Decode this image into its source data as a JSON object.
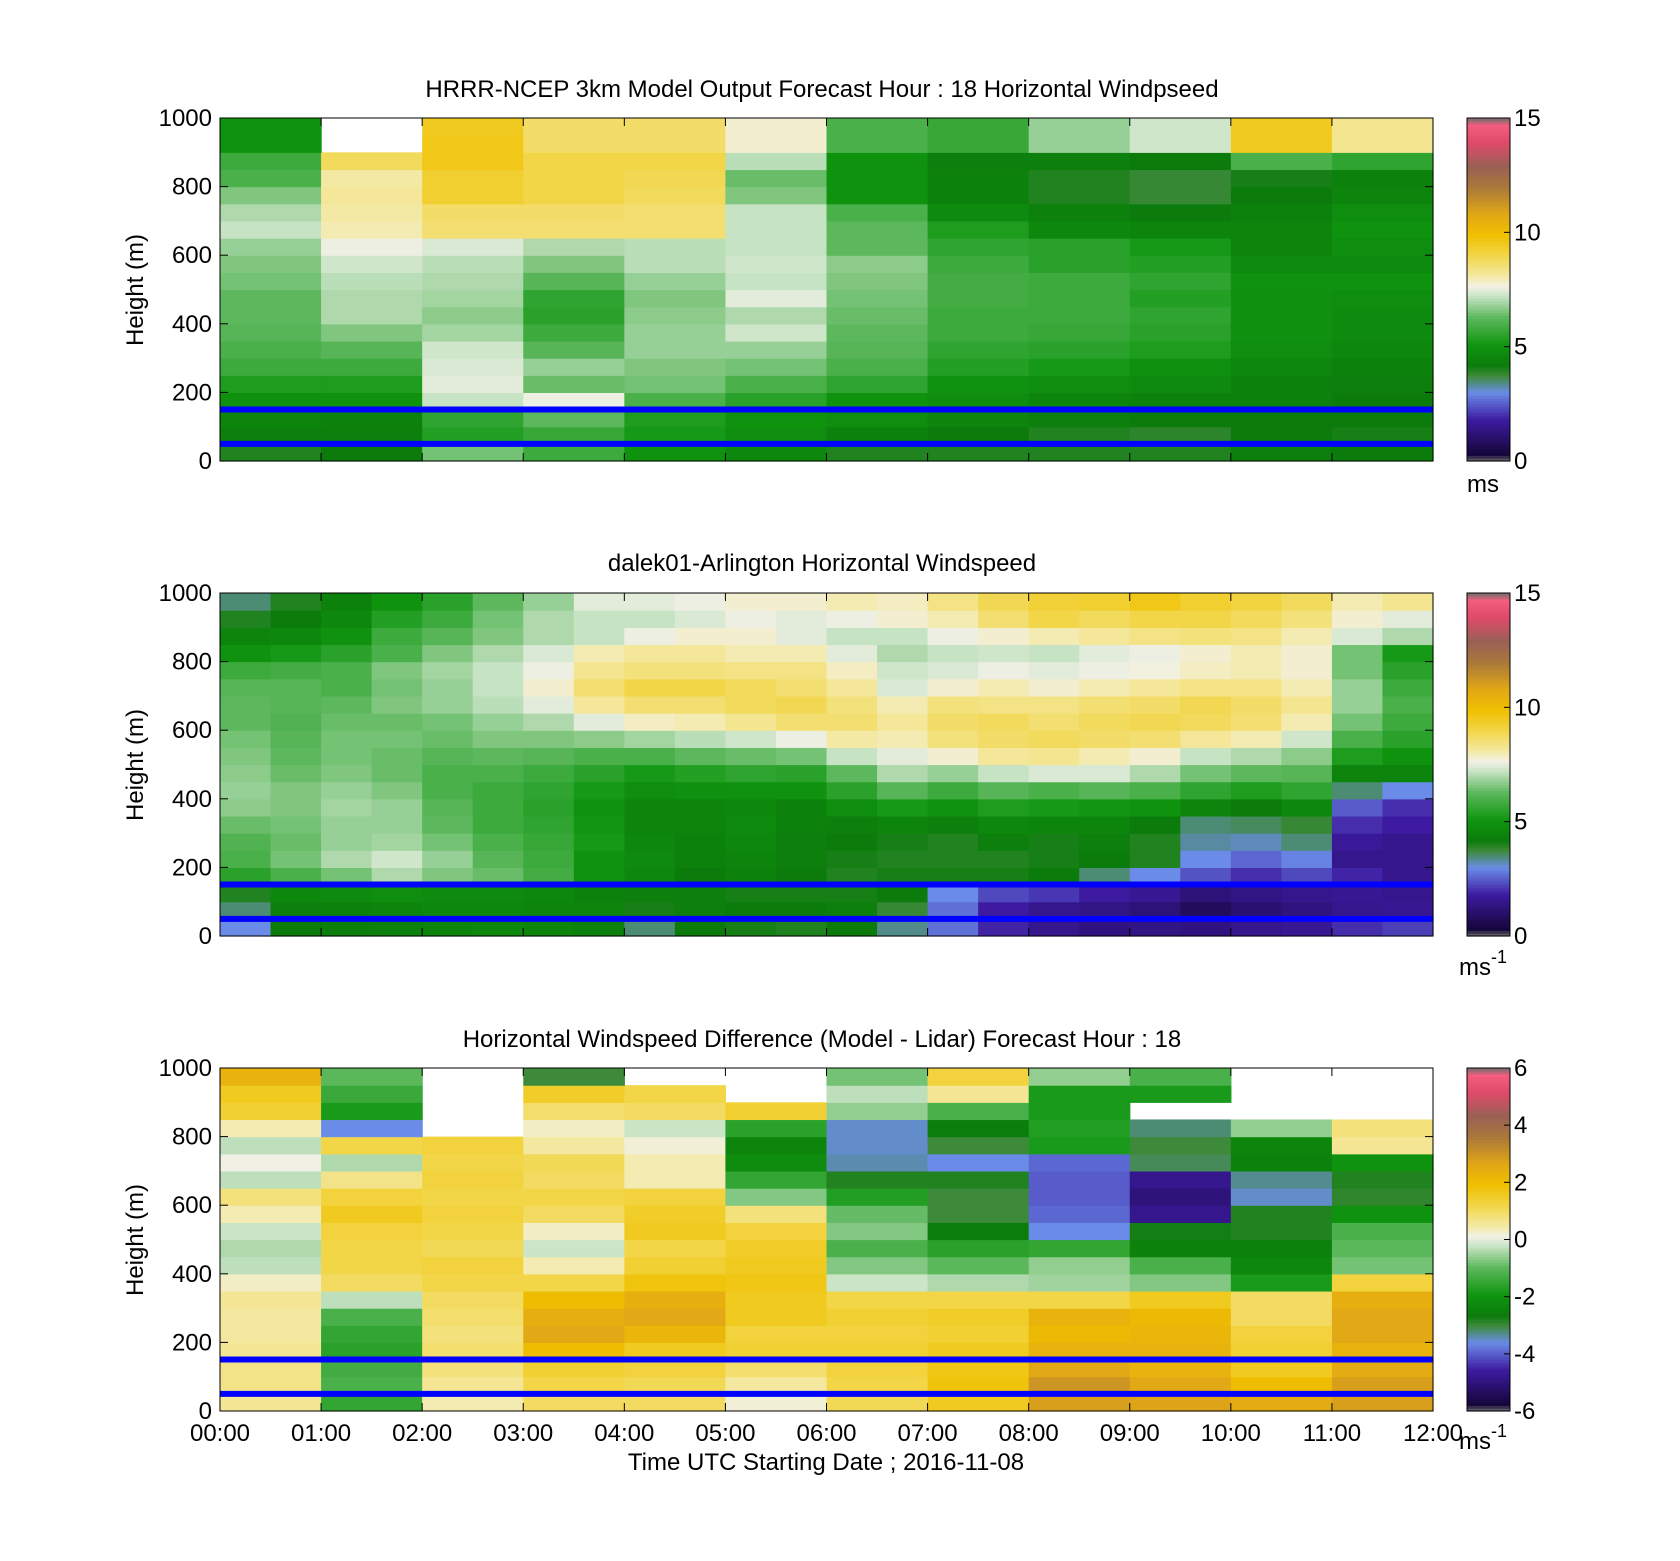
{
  "chart_data": [
    {
      "type": "heatmap",
      "title": "HRRR-NCEP 3km Model Output   Forecast Hour : 18 Horizontal Windpseed",
      "ylabel": "Height (m)",
      "ylim": [
        0,
        1000
      ],
      "yticks": [
        "0",
        "200",
        "400",
        "600",
        "800",
        "1000"
      ],
      "xlim": [
        "00:00",
        "12:00"
      ],
      "colorbar": {
        "min": 0,
        "max": 15,
        "ticks": [
          "0",
          "5",
          "10",
          "15"
        ],
        "unit": "ms",
        "unit_sup": ""
      },
      "reference_lines_m": [
        50,
        150
      ],
      "heights_m": [
        25,
        75,
        125,
        175,
        225,
        275,
        325,
        375,
        425,
        475,
        525,
        575,
        625,
        675,
        725,
        775,
        825,
        875,
        925,
        975
      ],
      "times": [
        "00:00",
        "01:00",
        "02:00",
        "03:00",
        "04:00",
        "05:00",
        "06:00",
        "07:00",
        "08:00",
        "09:00",
        "10:00",
        "11:00"
      ],
      "values": [
        [
          4.0,
          4.2,
          6.5,
          5.8,
          5.0,
          4.6,
          4.0,
          4.0,
          4.0,
          4.0,
          4.3,
          4.2
        ],
        [
          4.3,
          4.3,
          5.4,
          5.7,
          5.2,
          4.8,
          4.4,
          4.2,
          4.0,
          3.9,
          4.2,
          4.1
        ],
        [
          4.5,
          4.4,
          5.6,
          6.3,
          5.3,
          5.0,
          4.8,
          4.5,
          4.3,
          4.2,
          4.2,
          4.2
        ],
        [
          4.9,
          5.0,
          7.2,
          7.6,
          6.0,
          5.5,
          5.0,
          4.8,
          4.5,
          4.4,
          4.4,
          4.2
        ],
        [
          5.3,
          5.3,
          7.5,
          6.4,
          6.5,
          6.0,
          5.6,
          5.0,
          4.8,
          4.7,
          4.4,
          4.3
        ],
        [
          5.8,
          5.8,
          7.4,
          6.8,
          6.6,
          6.5,
          6.0,
          5.4,
          5.2,
          4.9,
          4.6,
          4.4
        ],
        [
          6.0,
          6.2,
          7.3,
          6.2,
          6.8,
          6.8,
          6.2,
          5.6,
          5.5,
          5.3,
          4.8,
          4.6
        ],
        [
          6.2,
          6.6,
          6.9,
          5.8,
          6.8,
          7.3,
          6.3,
          5.8,
          5.7,
          5.5,
          4.9,
          4.7
        ],
        [
          6.3,
          7.0,
          6.7,
          5.5,
          6.7,
          7.0,
          6.4,
          5.8,
          5.8,
          5.6,
          4.9,
          4.7
        ],
        [
          6.3,
          7.0,
          6.9,
          5.6,
          6.6,
          7.5,
          6.5,
          5.9,
          5.8,
          5.4,
          4.9,
          4.8
        ],
        [
          6.5,
          7.1,
          7.0,
          6.2,
          6.8,
          7.2,
          6.6,
          5.9,
          5.8,
          5.6,
          5.0,
          5.0
        ],
        [
          6.6,
          7.3,
          7.1,
          6.6,
          7.1,
          7.3,
          6.7,
          5.8,
          5.5,
          5.4,
          4.7,
          4.7
        ],
        [
          6.8,
          7.6,
          7.4,
          7.0,
          7.1,
          7.2,
          6.3,
          5.6,
          5.5,
          5.2,
          4.5,
          4.8
        ],
        [
          7.2,
          8.0,
          8.6,
          8.6,
          8.6,
          7.2,
          6.3,
          5.3,
          4.6,
          4.5,
          4.5,
          5.0
        ],
        [
          7.0,
          8.1,
          8.7,
          8.7,
          8.6,
          7.2,
          6.0,
          4.7,
          4.4,
          4.2,
          4.4,
          4.8
        ],
        [
          6.6,
          8.2,
          9.3,
          9.0,
          8.8,
          6.6,
          5.0,
          4.4,
          4.0,
          3.8,
          4.2,
          4.5
        ],
        [
          6.0,
          8.1,
          9.3,
          9.0,
          8.9,
          6.4,
          5.0,
          4.4,
          4.0,
          3.8,
          4.1,
          4.4
        ],
        [
          5.8,
          8.8,
          9.6,
          9.0,
          9.0,
          7.1,
          5.0,
          4.3,
          4.3,
          4.2,
          6.0,
          5.6
        ],
        [
          5.0,
          null,
          9.6,
          8.7,
          8.7,
          7.8,
          6.0,
          5.7,
          6.8,
          7.3,
          9.5,
          8.3
        ],
        [
          5.0,
          null,
          9.5,
          8.7,
          8.7,
          7.8,
          6.0,
          5.7,
          6.8,
          7.3,
          9.5,
          8.3
        ]
      ]
    },
    {
      "type": "heatmap",
      "title": "dalek01-Arlington  Horizontal Windspeed",
      "ylabel": "Height (m)",
      "ylim": [
        0,
        1000
      ],
      "yticks": [
        "0",
        "200",
        "400",
        "600",
        "800",
        "1000"
      ],
      "xlim": [
        "00:00",
        "12:00"
      ],
      "colorbar": {
        "min": 0,
        "max": 15,
        "ticks": [
          "0",
          "5",
          "10",
          "15"
        ],
        "unit": "ms",
        "unit_sup": "-1"
      },
      "reference_lines_m": [
        50,
        150
      ],
      "heights_m": [
        25,
        75,
        125,
        175,
        225,
        275,
        325,
        375,
        425,
        475,
        525,
        575,
        625,
        675,
        725,
        775,
        825,
        875,
        925,
        975
      ],
      "times": [
        "00:00",
        "00:30",
        "01:00",
        "01:30",
        "02:00",
        "02:30",
        "03:00",
        "03:30",
        "04:00",
        "04:30",
        "05:00",
        "05:30",
        "06:00",
        "06:30",
        "07:00",
        "07:30",
        "08:00",
        "08:30",
        "09:00",
        "09:30",
        "10:00",
        "10:30",
        "11:00",
        "11:30"
      ],
      "values": [
        [
          3.0,
          4.2,
          4.3,
          4.4,
          4.5,
          4.6,
          4.5,
          4.4,
          3.5,
          4.2,
          4.1,
          4.0,
          4.2,
          3.4,
          2.7,
          1.9,
          1.5,
          1.3,
          1.4,
          1.3,
          1.5,
          1.6,
          2.0,
          2.2
        ],
        [
          3.5,
          4.3,
          4.4,
          4.5,
          4.6,
          4.6,
          4.5,
          4.5,
          4.1,
          4.3,
          4.2,
          4.2,
          4.3,
          3.8,
          2.7,
          1.8,
          1.5,
          1.4,
          1.2,
          0.8,
          1.1,
          1.3,
          1.5,
          1.6
        ],
        [
          4.0,
          4.6,
          4.7,
          4.8,
          4.7,
          4.7,
          4.6,
          4.4,
          4.3,
          4.3,
          4.1,
          4.1,
          4.1,
          4.2,
          3.0,
          2.3,
          2.1,
          1.8,
          1.6,
          1.2,
          1.4,
          1.5,
          1.6,
          1.5
        ],
        [
          5.5,
          6.0,
          6.5,
          7.0,
          6.6,
          6.4,
          5.9,
          5.0,
          4.6,
          4.2,
          4.4,
          4.2,
          4.0,
          4.1,
          4.1,
          4.1,
          4.2,
          3.5,
          3.0,
          2.4,
          2.0,
          2.3,
          1.9,
          1.5
        ],
        [
          6.0,
          6.5,
          7.0,
          7.3,
          6.8,
          6.2,
          5.8,
          5.0,
          4.7,
          4.4,
          4.5,
          4.3,
          4.1,
          4.0,
          4.0,
          4.0,
          4.1,
          4.2,
          4.0,
          3.0,
          2.6,
          2.9,
          1.5,
          1.5
        ],
        [
          6.1,
          6.4,
          6.8,
          6.9,
          6.5,
          6.0,
          5.7,
          5.2,
          4.6,
          4.4,
          4.6,
          4.3,
          4.2,
          4.1,
          4.0,
          4.3,
          4.1,
          4.3,
          4.0,
          3.3,
          3.2,
          3.5,
          1.7,
          1.5
        ],
        [
          6.4,
          6.5,
          6.8,
          6.8,
          6.3,
          5.8,
          5.6,
          5.1,
          4.5,
          4.5,
          4.7,
          4.4,
          4.3,
          4.5,
          4.3,
          4.6,
          4.5,
          4.5,
          4.2,
          3.5,
          3.6,
          3.8,
          2.0,
          1.8
        ],
        [
          6.7,
          6.6,
          6.9,
          6.8,
          6.2,
          5.8,
          5.5,
          5.0,
          4.5,
          4.5,
          4.6,
          4.4,
          4.8,
          5.2,
          5.0,
          5.3,
          5.2,
          5.1,
          5.0,
          4.5,
          4.2,
          4.6,
          2.5,
          2.0
        ],
        [
          6.8,
          6.6,
          6.8,
          6.6,
          6.0,
          5.8,
          5.6,
          5.2,
          4.8,
          4.9,
          5.0,
          5.0,
          5.5,
          6.2,
          5.8,
          6.2,
          6.0,
          6.2,
          6.0,
          5.6,
          5.3,
          5.6,
          3.5,
          3.0
        ],
        [
          6.7,
          6.4,
          6.6,
          6.4,
          6.0,
          6.0,
          5.8,
          5.5,
          5.2,
          5.4,
          5.6,
          5.5,
          6.3,
          7.0,
          6.8,
          7.2,
          7.4,
          7.4,
          7.0,
          6.5,
          6.3,
          6.2,
          4.5,
          4.5
        ],
        [
          6.6,
          6.3,
          6.5,
          6.4,
          6.2,
          6.3,
          6.2,
          6.0,
          6.0,
          6.3,
          6.4,
          6.5,
          7.2,
          7.5,
          7.8,
          8.2,
          8.3,
          8.0,
          7.8,
          7.2,
          7.0,
          6.7,
          5.3,
          5.0
        ],
        [
          6.5,
          6.2,
          6.5,
          6.5,
          6.4,
          6.6,
          6.6,
          6.7,
          6.9,
          7.1,
          7.3,
          7.6,
          8.1,
          8.0,
          8.5,
          8.7,
          8.8,
          8.7,
          8.6,
          8.2,
          8.0,
          7.3,
          6.0,
          5.5
        ],
        [
          6.3,
          6.1,
          6.4,
          6.4,
          6.5,
          6.8,
          7.0,
          7.5,
          7.9,
          8.0,
          8.3,
          8.6,
          8.6,
          8.2,
          8.7,
          8.8,
          8.6,
          8.8,
          8.9,
          8.8,
          8.6,
          8.0,
          6.5,
          5.8
        ],
        [
          6.3,
          6.2,
          6.3,
          6.6,
          6.8,
          7.1,
          7.5,
          8.2,
          8.6,
          8.6,
          8.8,
          8.9,
          8.5,
          8.0,
          8.5,
          8.4,
          8.4,
          8.6,
          8.7,
          8.9,
          8.7,
          8.3,
          6.8,
          6.0
        ],
        [
          6.2,
          6.2,
          6.0,
          6.5,
          6.8,
          7.2,
          7.8,
          8.6,
          9.0,
          9.0,
          8.8,
          8.6,
          8.2,
          7.4,
          7.8,
          8.0,
          7.8,
          8.0,
          8.2,
          8.4,
          8.4,
          8.0,
          6.8,
          5.8
        ],
        [
          5.8,
          5.9,
          6.0,
          6.6,
          6.9,
          7.2,
          7.6,
          8.3,
          8.5,
          8.5,
          8.4,
          8.4,
          7.9,
          7.3,
          7.4,
          7.6,
          7.5,
          7.6,
          7.7,
          7.9,
          8.0,
          7.8,
          6.5,
          5.5
        ],
        [
          5.0,
          5.2,
          5.5,
          6.0,
          6.6,
          7.0,
          7.4,
          8.0,
          8.2,
          8.2,
          8.0,
          8.0,
          7.5,
          7.0,
          7.2,
          7.3,
          7.2,
          7.5,
          7.6,
          7.8,
          8.0,
          7.8,
          6.5,
          5.2
        ],
        [
          4.5,
          4.6,
          5.0,
          5.8,
          6.2,
          6.6,
          7.0,
          7.2,
          7.6,
          7.8,
          7.8,
          7.5,
          7.2,
          7.2,
          7.6,
          7.8,
          8.0,
          8.2,
          8.4,
          8.5,
          8.4,
          8.0,
          7.4,
          7.0
        ],
        [
          4.0,
          4.2,
          4.6,
          5.4,
          5.8,
          6.5,
          7.0,
          7.2,
          7.2,
          7.4,
          7.6,
          7.5,
          7.6,
          7.8,
          8.0,
          8.6,
          9.0,
          8.8,
          9.0,
          9.0,
          8.8,
          8.5,
          7.8,
          7.5
        ],
        [
          3.5,
          4.0,
          4.4,
          5.0,
          5.5,
          6.3,
          6.8,
          7.5,
          7.5,
          7.6,
          7.8,
          7.8,
          8.0,
          7.9,
          8.4,
          8.9,
          9.2,
          9.3,
          9.6,
          9.3,
          9.1,
          8.8,
          8.0,
          8.3
        ]
      ]
    },
    {
      "type": "heatmap",
      "title": "Horizontal Windspeed Difference (Model - Lidar) Forecast Hour : 18",
      "xlabel": "Time UTC  Starting Date ; 2016-11-08",
      "ylabel": "Height (m)",
      "ylim": [
        0,
        1000
      ],
      "yticks": [
        "0",
        "200",
        "400",
        "600",
        "800",
        "1000"
      ],
      "xticks": [
        "00:00",
        "01:00",
        "02:00",
        "03:00",
        "04:00",
        "05:00",
        "06:00",
        "07:00",
        "08:00",
        "09:00",
        "10:00",
        "11:00",
        "12:00"
      ],
      "colorbar": {
        "min": -6,
        "max": 6,
        "ticks": [
          "-6",
          "-4",
          "-2",
          "0",
          "2",
          "4",
          "6"
        ],
        "unit": "ms",
        "unit_sup": "-1"
      },
      "reference_lines_m": [
        50,
        150
      ],
      "heights_m": [
        25,
        75,
        125,
        175,
        225,
        275,
        325,
        375,
        425,
        475,
        525,
        575,
        625,
        675,
        725,
        775,
        825,
        875,
        925,
        975
      ],
      "times": [
        "00:00",
        "01:00",
        "02:00",
        "03:00",
        "04:00",
        "05:00",
        "06:00",
        "07:00",
        "08:00",
        "09:00",
        "10:00",
        "11:00"
      ],
      "values": [
        [
          0.6,
          -1.5,
          0.4,
          1.0,
          1.0,
          0.2,
          1.1,
          1.6,
          2.8,
          2.7,
          2.5,
          2.8
        ],
        [
          0.7,
          -1.2,
          0.6,
          1.2,
          1.1,
          0.5,
          1.2,
          1.8,
          3.0,
          2.6,
          2.0,
          2.8
        ],
        [
          0.7,
          -1.3,
          0.8,
          1.4,
          1.3,
          0.9,
          1.3,
          1.7,
          2.6,
          2.3,
          1.6,
          2.5
        ],
        [
          0.6,
          -1.6,
          0.9,
          2.0,
          1.6,
          1.4,
          1.4,
          1.6,
          2.3,
          2.3,
          1.4,
          2.3
        ],
        [
          0.5,
          -1.5,
          0.8,
          2.6,
          2.2,
          1.3,
          1.3,
          1.4,
          2.1,
          2.2,
          1.3,
          2.6
        ],
        [
          0.5,
          -1.2,
          0.9,
          2.4,
          2.6,
          1.6,
          1.4,
          1.5,
          2.3,
          2.1,
          1.0,
          2.6
        ],
        [
          0.6,
          -0.3,
          1.0,
          2.0,
          2.4,
          1.6,
          1.2,
          1.2,
          1.2,
          1.6,
          1.0,
          2.4
        ],
        [
          0.3,
          1.0,
          1.2,
          1.2,
          1.8,
          1.7,
          -0.2,
          -0.4,
          -0.5,
          -0.7,
          -1.8,
          1.3
        ],
        [
          -0.3,
          1.2,
          1.3,
          0.4,
          1.4,
          1.6,
          -0.7,
          -1.0,
          -0.6,
          -1.2,
          -2.3,
          -0.8
        ],
        [
          -0.4,
          1.2,
          1.1,
          -0.2,
          1.2,
          1.5,
          -1.2,
          -1.6,
          -1.5,
          -2.5,
          -2.5,
          -1.0
        ],
        [
          -0.2,
          1.3,
          1.2,
          0.3,
          1.6,
          1.3,
          -0.7,
          -2.6,
          -3.6,
          -2.7,
          -2.8,
          -1.2
        ],
        [
          0.4,
          1.6,
          1.3,
          1.0,
          1.5,
          0.8,
          -0.9,
          -3.0,
          -3.9,
          -4.8,
          -2.8,
          -2.0
        ],
        [
          0.8,
          1.3,
          1.2,
          1.2,
          1.3,
          -0.7,
          -1.7,
          -3.0,
          -4.0,
          -5.0,
          -3.5,
          -2.9
        ],
        [
          -0.3,
          0.7,
          1.3,
          1.0,
          0.4,
          -1.5,
          -2.8,
          -2.8,
          -4.0,
          -4.8,
          -3.3,
          -2.8
        ],
        [
          0.1,
          -0.4,
          1.2,
          1.1,
          0.4,
          -2.2,
          -3.4,
          -3.6,
          -3.9,
          -3.1,
          -2.5,
          -2.0
        ],
        [
          -0.3,
          1.2,
          1.3,
          0.5,
          0.2,
          -2.4,
          -3.5,
          -3.0,
          -1.8,
          -3.0,
          -2.4,
          0.6
        ],
        [
          0.4,
          -3.6,
          null,
          0.3,
          -0.2,
          -1.6,
          -3.5,
          -2.6,
          -1.7,
          -3.2,
          -0.6,
          0.8
        ],
        [
          1.4,
          -1.8,
          null,
          0.9,
          1.0,
          1.4,
          -0.6,
          -1.2,
          -1.8,
          null,
          null,
          null
        ],
        [
          1.6,
          -1.4,
          null,
          1.5,
          1.2,
          null,
          -0.3,
          0.6,
          -1.8,
          -1.8,
          null,
          null
        ],
        [
          2.3,
          -1.0,
          null,
          -3.0,
          null,
          null,
          -0.8,
          1.3,
          -0.6,
          -1.2,
          null,
          null
        ]
      ]
    }
  ]
}
